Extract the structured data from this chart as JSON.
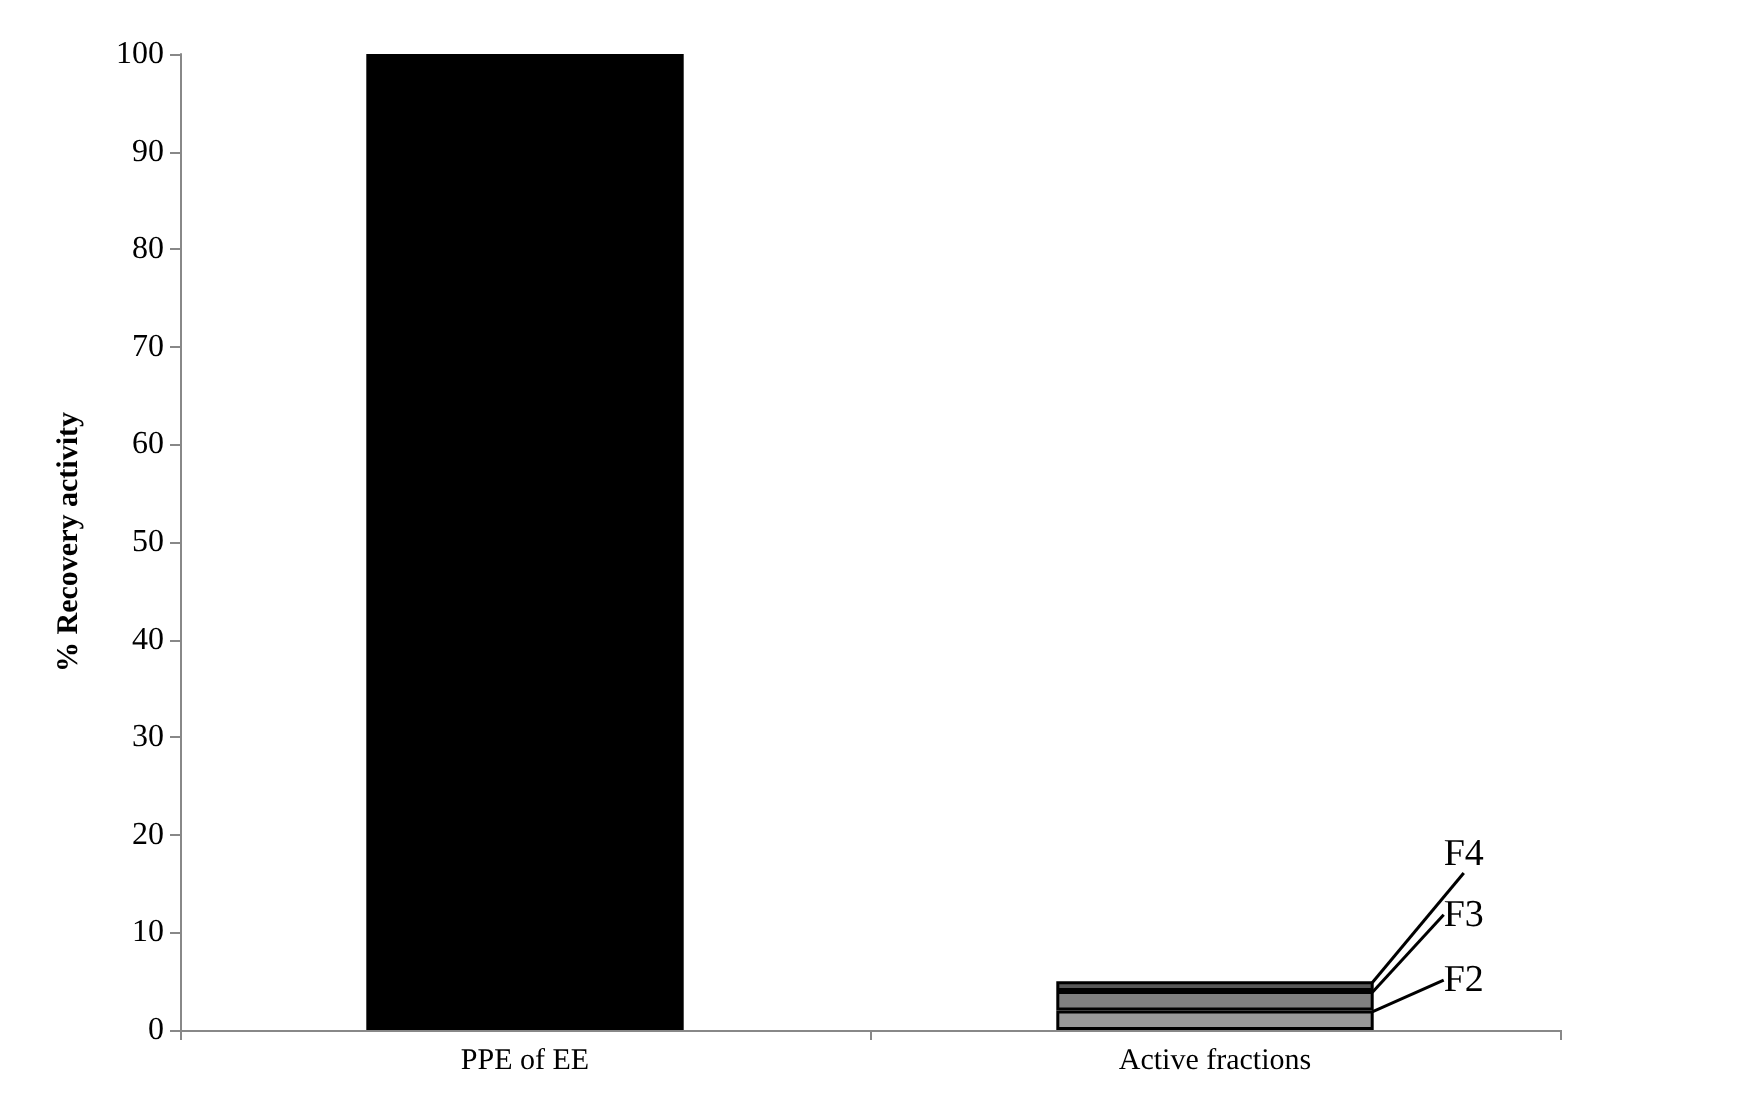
{
  "chart_data": {
    "type": "bar",
    "ylabel": "% Recovery activity",
    "categories": [
      "PPE of EE",
      "Active fractions"
    ],
    "stacked": true,
    "series": [
      {
        "color": "#000000",
        "values": [
          100,
          null
        ]
      },
      {
        "name": "F2",
        "color": "#999999",
        "values": [
          null,
          2
        ]
      },
      {
        "name": "F3",
        "color": "#808080",
        "values": [
          null,
          2
        ]
      },
      {
        "name": "F4",
        "color": "#595959",
        "values": [
          null,
          1
        ]
      }
    ],
    "ylim": [
      0,
      100
    ],
    "yticks": [
      0,
      10,
      20,
      30,
      40,
      50,
      60,
      70,
      80,
      90,
      100
    ],
    "grid": false
  }
}
